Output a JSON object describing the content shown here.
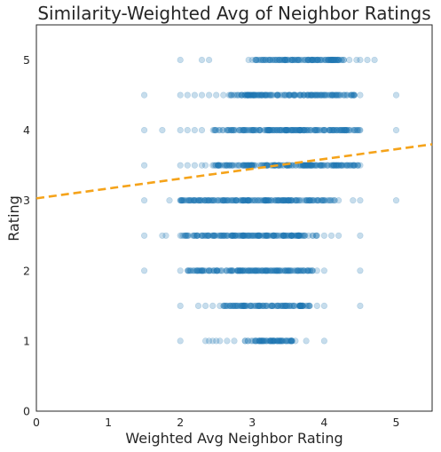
{
  "chart_data": {
    "type": "scatter",
    "title": "Similarity-Weighted Avg of Neighbor Ratings",
    "xlabel": "Weighted Avg Neighbor Rating",
    "ylabel": "Rating",
    "xlim": [
      0,
      5.5
    ],
    "ylim": [
      0,
      5.5
    ],
    "xticks": [
      "0",
      "1",
      "2",
      "3",
      "4",
      "5"
    ],
    "yticks": [
      "0",
      "1",
      "2",
      "3",
      "4",
      "5"
    ],
    "grid": false,
    "legend": "none",
    "point_color": "#1f77b4",
    "point_alpha": 0.25,
    "line_color": "#f5a31a",
    "bands": [
      {
        "y": 1.0,
        "x_min": 2.0,
        "x_max": 4.0,
        "dense": [
          2.9,
          3.6
        ],
        "extras": [
          2.0,
          2.35,
          2.4,
          2.45,
          2.5,
          2.55,
          2.65,
          2.75,
          2.9,
          3.05,
          3.1,
          3.15,
          3.25,
          3.35,
          3.5,
          3.55,
          3.6,
          3.75,
          4.0
        ]
      },
      {
        "y": 1.5,
        "x_min": 2.0,
        "x_max": 4.5,
        "dense": [
          2.6,
          3.8
        ],
        "extras": [
          2.0,
          2.25,
          2.35,
          2.45,
          2.55,
          2.85,
          3.45,
          3.55,
          3.8,
          3.9,
          4.0,
          4.5
        ]
      },
      {
        "y": 2.0,
        "x_min": 1.5,
        "x_max": 4.5,
        "dense": [
          2.1,
          3.85
        ],
        "extras": [
          1.5,
          2.0,
          2.15,
          2.3,
          2.55,
          3.9,
          4.0,
          4.5
        ]
      },
      {
        "y": 2.5,
        "x_min": 1.5,
        "x_max": 4.5,
        "dense": [
          2.0,
          3.9
        ],
        "extras": [
          1.5,
          1.75,
          1.8,
          2.0,
          2.1,
          2.2,
          3.9,
          4.0,
          4.1,
          4.2,
          4.5
        ]
      },
      {
        "y": 3.0,
        "x_min": 1.5,
        "x_max": 5.0,
        "dense": [
          2.0,
          4.15
        ],
        "extras": [
          1.5,
          1.85,
          2.0,
          2.15,
          2.3,
          4.2,
          4.4,
          4.5,
          5.0
        ]
      },
      {
        "y": 3.5,
        "x_min": 1.5,
        "x_max": 4.5,
        "dense": [
          2.45,
          4.5
        ],
        "extras": [
          1.5,
          2.0,
          2.1,
          2.2,
          2.3,
          2.35,
          4.5
        ]
      },
      {
        "y": 4.0,
        "x_min": 1.5,
        "x_max": 5.0,
        "dense": [
          2.45,
          4.5
        ],
        "extras": [
          1.5,
          1.75,
          2.0,
          2.1,
          2.2,
          2.3,
          4.5,
          5.0
        ]
      },
      {
        "y": 4.5,
        "x_min": 1.5,
        "x_max": 5.0,
        "dense": [
          2.65,
          4.45
        ],
        "extras": [
          1.5,
          2.0,
          2.1,
          2.2,
          2.3,
          2.4,
          2.5,
          2.6,
          4.5,
          5.0
        ]
      },
      {
        "y": 5.0,
        "x_min": 2.0,
        "x_max": 4.7,
        "dense": [
          2.95,
          4.3
        ],
        "extras": [
          2.0,
          2.3,
          2.4,
          2.95,
          3.0,
          4.35,
          4.45,
          4.5,
          4.6,
          4.7
        ]
      }
    ],
    "trend_line": {
      "x": [
        0,
        5.5
      ],
      "y": [
        3.03,
        3.8
      ]
    }
  }
}
